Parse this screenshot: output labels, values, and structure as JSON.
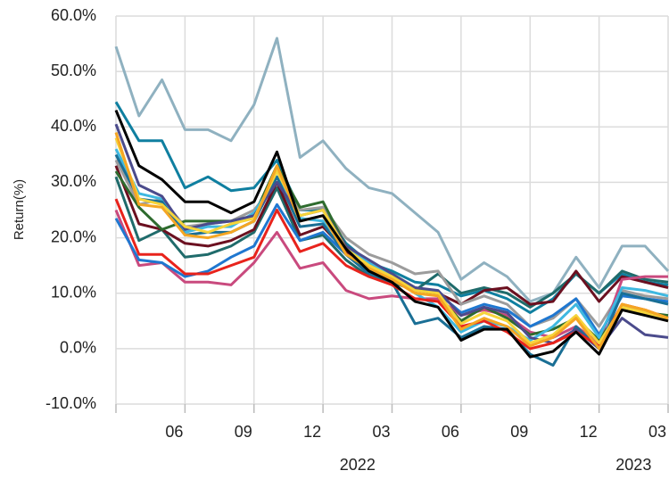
{
  "chart_data": {
    "type": "line",
    "y_label": "Return(%)",
    "categories": [
      null,
      null,
      null,
      "06",
      null,
      null,
      "09",
      null,
      null,
      "12",
      null,
      null,
      "03",
      null,
      null,
      "06",
      null,
      null,
      "09",
      null,
      null,
      "12",
      null,
      null,
      "03"
    ],
    "year_labels": [
      "2022",
      "2023"
    ],
    "ylim": [
      -10,
      60
    ],
    "yticks": [
      {
        "value": -10,
        "label": "-10.0%"
      },
      {
        "value": 0,
        "label": "0.0%"
      },
      {
        "value": 10,
        "label": "10.0%"
      },
      {
        "value": 20,
        "label": "20.0%"
      },
      {
        "value": 30,
        "label": "30.0%"
      },
      {
        "value": 40,
        "label": "40.0%"
      },
      {
        "value": 50,
        "label": "50.0%"
      },
      {
        "value": 60,
        "label": "60.0%"
      }
    ],
    "grid": true,
    "series": [
      {
        "color": "#8fb1c0",
        "values": [
          54.5,
          42,
          48.5,
          39.5,
          39.5,
          37.5,
          44,
          56,
          34.5,
          37.5,
          32.5,
          29,
          28,
          24.5,
          21,
          12.5,
          15.5,
          13,
          8.5,
          10,
          16.5,
          11,
          18.5,
          18.5,
          14
        ]
      },
      {
        "color": "#0f7fa0",
        "values": [
          44.5,
          37.5,
          37.5,
          29,
          31,
          28.5,
          29,
          34,
          25,
          25,
          19,
          15.5,
          14,
          12,
          11.5,
          9.5,
          10.5,
          9,
          6.5,
          9,
          13.5,
          10,
          13.5,
          12,
          11.5
        ]
      },
      {
        "color": "#1f6b6b",
        "values": [
          31,
          19.5,
          21.5,
          16.5,
          17,
          18.5,
          21,
          29,
          19.5,
          20.5,
          16,
          13,
          12,
          10.5,
          13.5,
          10,
          11,
          10,
          7.5,
          10,
          13.5,
          10,
          14,
          12.5,
          12
        ]
      },
      {
        "color": "#6b1020",
        "values": [
          33,
          22.5,
          21.5,
          19,
          18.5,
          19.5,
          21.5,
          30,
          20.5,
          22,
          17.5,
          15,
          13.5,
          10.5,
          10,
          8,
          10.5,
          11,
          8,
          8.5,
          14,
          8.5,
          13,
          12,
          11
        ]
      },
      {
        "color": "#9c9c9c",
        "values": [
          34,
          26,
          27,
          22,
          22.5,
          23,
          25,
          30,
          25,
          25.5,
          20,
          17,
          15.5,
          13.5,
          14,
          8,
          9.5,
          8,
          4,
          5.5,
          9,
          4,
          10.5,
          9.5,
          9
        ]
      },
      {
        "color": "#c94a7e",
        "values": [
          25,
          15,
          15.5,
          12,
          12,
          11.5,
          15.5,
          21,
          14.5,
          15.5,
          10.5,
          9,
          9.5,
          9,
          9,
          6,
          7,
          6,
          3,
          2,
          4,
          1,
          12.5,
          13,
          13
        ]
      },
      {
        "color": "#1f77d0",
        "values": [
          23.5,
          16,
          15.5,
          13,
          14,
          16.5,
          18.5,
          26,
          19.5,
          21,
          17,
          13.5,
          12.5,
          11,
          10,
          6.5,
          8,
          7,
          4,
          6,
          9,
          2.5,
          9.5,
          9,
          8.5
        ]
      },
      {
        "color": "#2e6b2e",
        "values": [
          32,
          25.5,
          21.5,
          23,
          23,
          23,
          24,
          33,
          25.5,
          26.5,
          18.5,
          15.5,
          13.5,
          11,
          9.5,
          5,
          7.5,
          5.5,
          2.5,
          3.5,
          5.5,
          1.5,
          7.5,
          6.5,
          6
        ]
      },
      {
        "color": "#3fb8e0",
        "values": [
          36,
          28,
          27,
          21,
          22,
          22,
          24.5,
          31,
          23.5,
          23,
          18.5,
          15.5,
          13.5,
          10,
          7.5,
          3,
          5,
          4,
          1.5,
          4,
          8,
          2,
          11,
          10.5,
          9.5
        ]
      },
      {
        "color": "#1a6f95",
        "values": [
          35,
          27,
          26.5,
          20.5,
          21,
          21,
          23,
          31,
          22,
          22.5,
          17,
          13.5,
          12,
          4.5,
          5.5,
          2,
          4,
          3.5,
          -1,
          -3,
          4,
          0,
          10,
          9,
          8
        ]
      },
      {
        "color": "#4b4b8c",
        "values": [
          40.5,
          29.5,
          27.5,
          21.5,
          22.5,
          23,
          24,
          30,
          24,
          25,
          18.5,
          16,
          13.5,
          11,
          10.5,
          6,
          7.5,
          6.5,
          2,
          1,
          3.5,
          0,
          5.5,
          2.5,
          2
        ]
      },
      {
        "color": "#e8231c",
        "values": [
          27,
          17,
          17,
          13.5,
          13.5,
          15,
          16.5,
          25,
          17.5,
          19,
          15,
          13,
          11.5,
          9,
          8.5,
          4,
          5,
          3,
          0,
          1,
          3,
          0.5,
          8,
          7,
          5.5
        ]
      },
      {
        "color": "#f6d43a",
        "values": [
          38,
          27,
          26,
          22,
          21,
          22.5,
          23.5,
          32,
          24,
          25,
          18,
          15,
          13,
          10.5,
          10,
          4.5,
          6.5,
          5,
          1,
          2.5,
          6,
          1,
          7.5,
          6.5,
          5
        ]
      },
      {
        "color": "#f5a623",
        "values": [
          39,
          26,
          25.5,
          20.5,
          20,
          21,
          23,
          33,
          23,
          24,
          17,
          14.5,
          12.5,
          10,
          9.5,
          3.5,
          5.5,
          4,
          0.5,
          2,
          5.5,
          0,
          8,
          7,
          5.5
        ]
      },
      {
        "color": "#000000",
        "values": [
          43,
          33,
          30.5,
          26.5,
          26.5,
          24.5,
          26.5,
          35.5,
          23,
          24,
          18,
          14,
          12,
          8.5,
          7.5,
          1.5,
          3.5,
          3.5,
          -1.5,
          -0.5,
          3,
          -1,
          7,
          6,
          5
        ]
      }
    ]
  }
}
